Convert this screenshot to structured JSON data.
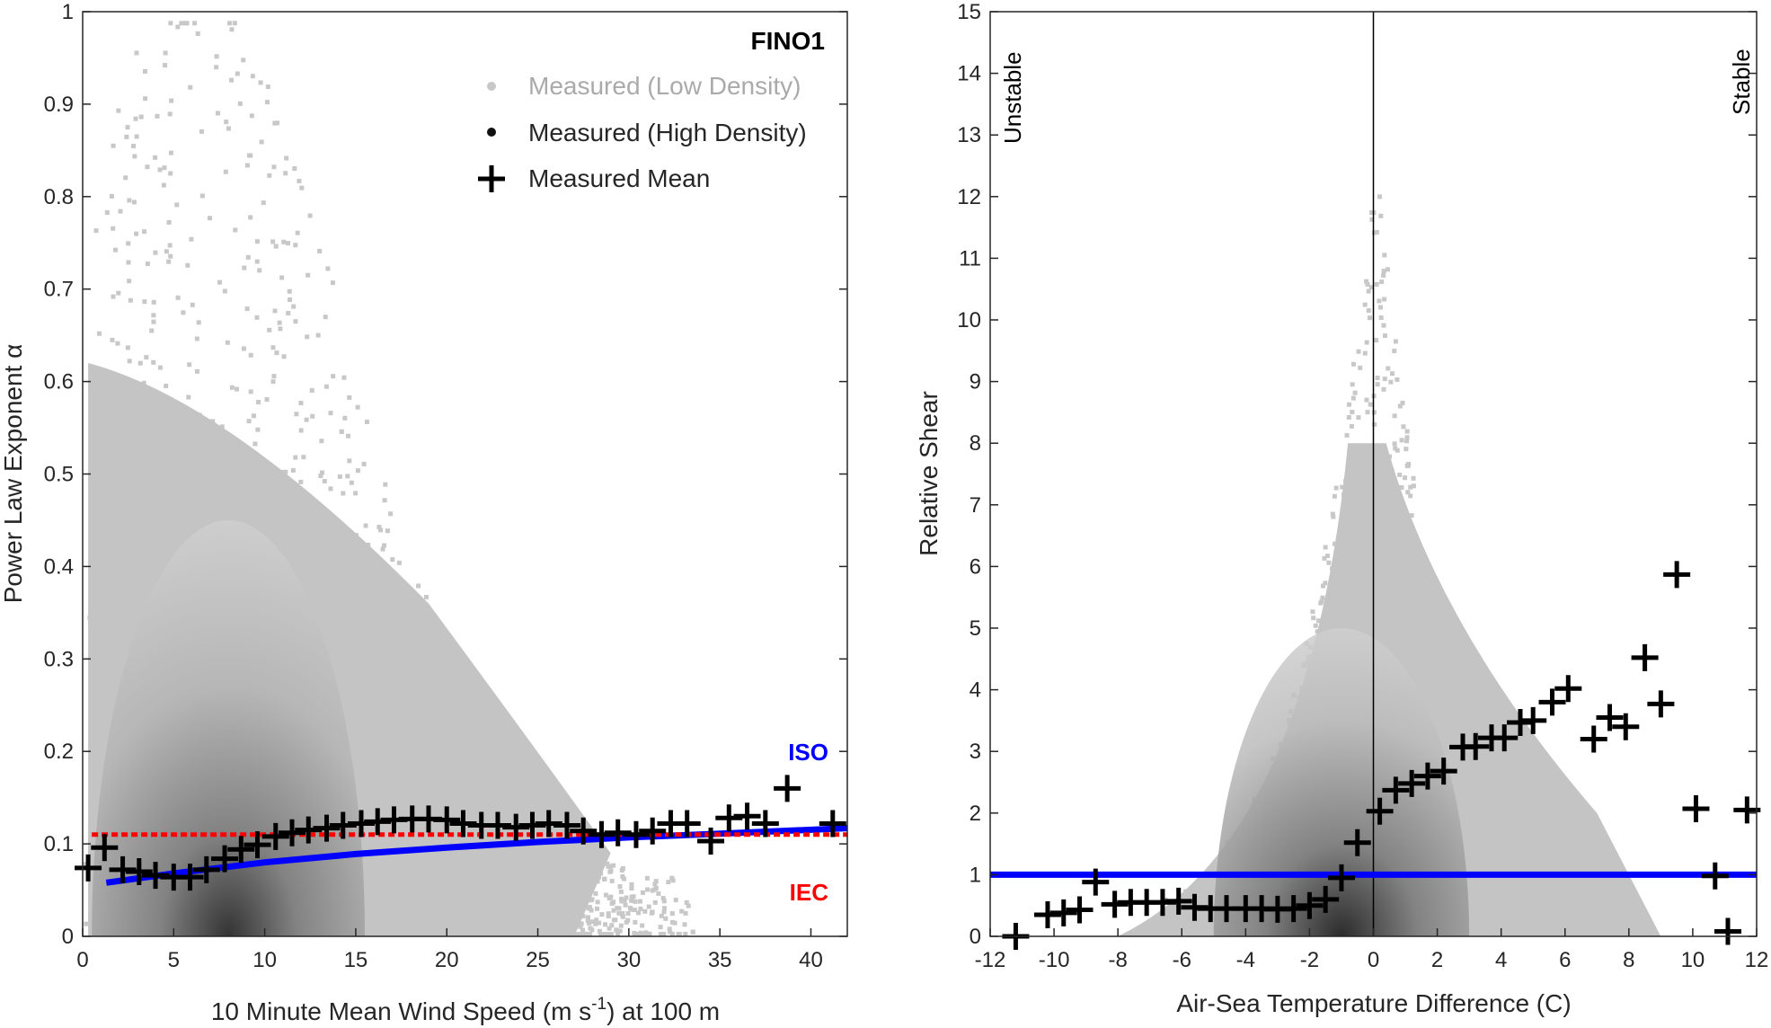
{
  "chart_data": [
    {
      "type": "scatter",
      "title": "FINO1",
      "xlabel": "10 Minute Mean Wind Speed (m s^-1) at 100 m",
      "xlabel_parts": {
        "pre": "10 Minute Mean Wind Speed (m s",
        "sup": "-1",
        "post": ") at 100 m"
      },
      "ylabel": "Power Law Exponent α",
      "xlim": [
        0,
        42
      ],
      "ylim": [
        0,
        1
      ],
      "xticks": [
        0,
        5,
        10,
        15,
        20,
        25,
        30,
        35,
        40
      ],
      "yticks": [
        0,
        0.1,
        0.2,
        0.3,
        0.4,
        0.5,
        0.6,
        0.7,
        0.8,
        0.9,
        1
      ],
      "legend_position": "top-right",
      "legend": [
        "Measured (Low Density)",
        "Measured (High Density)",
        "Measured Mean"
      ],
      "annotations": {
        "iso": "ISO",
        "iec": "IEC"
      },
      "colors": {
        "iso": "#0000ff",
        "iec": "#ff0000",
        "mean": "#000000",
        "low_density": "#c8c8c8"
      },
      "iec_value": 0.11,
      "iso_curve": {
        "x": [
          1.3,
          5,
          10,
          15,
          20,
          25,
          30,
          35,
          42
        ],
        "y": [
          0.058,
          0.068,
          0.08,
          0.089,
          0.096,
          0.102,
          0.107,
          0.111,
          0.117
        ]
      },
      "mean": {
        "x": [
          0.3,
          1.2,
          2.2,
          3.1,
          4.0,
          5.0,
          5.9,
          6.8,
          7.8,
          8.7,
          9.6,
          10.6,
          11.5,
          12.4,
          13.4,
          14.3,
          15.3,
          16.2,
          17.1,
          18.1,
          19.0,
          20.0,
          20.9,
          21.9,
          22.8,
          23.8,
          24.7,
          25.6,
          26.6,
          27.5,
          28.5,
          29.4,
          30.4,
          31.3,
          32.3,
          33.2,
          34.5,
          35.5,
          36.5,
          37.5,
          38.7,
          41.2
        ],
        "y": [
          0.074,
          0.096,
          0.072,
          0.07,
          0.066,
          0.064,
          0.064,
          0.072,
          0.084,
          0.094,
          0.099,
          0.108,
          0.112,
          0.115,
          0.117,
          0.12,
          0.122,
          0.124,
          0.126,
          0.127,
          0.127,
          0.126,
          0.122,
          0.12,
          0.12,
          0.118,
          0.12,
          0.122,
          0.12,
          0.114,
          0.11,
          0.112,
          0.11,
          0.114,
          0.122,
          0.122,
          0.103,
          0.128,
          0.13,
          0.122,
          0.16,
          0.122
        ]
      }
    },
    {
      "type": "scatter",
      "xlabel": "Air-Sea Temperature Difference (C)",
      "ylabel": "Relative Shear",
      "xlim": [
        -12,
        12
      ],
      "ylim": [
        0,
        15
      ],
      "xticks": [
        -12,
        -10,
        -8,
        -6,
        -4,
        -2,
        0,
        2,
        4,
        6,
        8,
        10,
        12
      ],
      "yticks": [
        0,
        1,
        2,
        3,
        4,
        5,
        6,
        7,
        8,
        9,
        10,
        11,
        12,
        13,
        14,
        15
      ],
      "annotations": {
        "unstable": "Unstable",
        "stable": "Stable"
      },
      "reference_line_y": 1,
      "zero_line_x": 0,
      "colors": {
        "reference": "#0000ff",
        "mean": "#000000"
      },
      "mean": {
        "x": [
          -11.2,
          -10.2,
          -9.7,
          -9.2,
          -8.7,
          -8.1,
          -7.6,
          -7.1,
          -6.6,
          -6.1,
          -5.6,
          -5.1,
          -4.6,
          -4.0,
          -3.5,
          -3.0,
          -2.5,
          -2.0,
          -1.5,
          -1.0,
          -0.5,
          0.2,
          0.7,
          1.2,
          1.7,
          2.2,
          2.8,
          3.2,
          3.7,
          4.1,
          4.6,
          5.0,
          5.6,
          6.1,
          6.9,
          7.4,
          7.9,
          8.5,
          9.0,
          9.5,
          10.1,
          10.7,
          11.1,
          11.7
        ],
        "y": [
          0,
          0.35,
          0.38,
          0.43,
          0.88,
          0.52,
          0.55,
          0.55,
          0.55,
          0.57,
          0.47,
          0.45,
          0.45,
          0.45,
          0.45,
          0.44,
          0.45,
          0.5,
          0.6,
          0.95,
          1.52,
          2.03,
          2.37,
          2.48,
          2.6,
          2.68,
          3.07,
          3.08,
          3.22,
          3.22,
          3.47,
          3.5,
          3.8,
          4.02,
          3.2,
          3.55,
          3.4,
          4.52,
          3.77,
          5.87,
          2.07,
          0.98,
          0.08,
          2.05
        ]
      }
    }
  ]
}
